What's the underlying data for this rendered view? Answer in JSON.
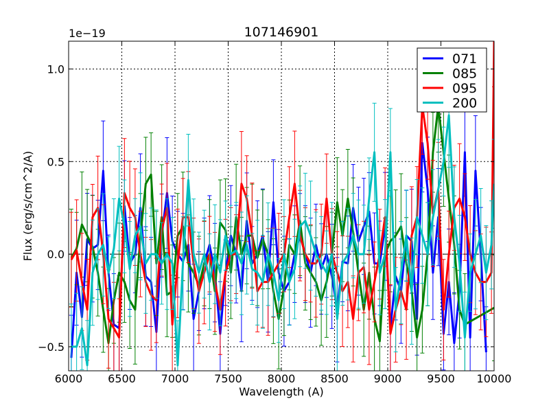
{
  "chart_data": {
    "type": "line",
    "title": "107146901",
    "xlabel": "Wavelength (A)",
    "ylabel": "Flux (erg/s/cm^2/A)",
    "y_scale_label": "1e−19",
    "xlim": [
      6000,
      10000
    ],
    "ylim": [
      -0.63,
      1.15
    ],
    "grid": true,
    "legend_position": "top-right",
    "xticks": [
      6000,
      6500,
      7000,
      7500,
      8000,
      8500,
      9000,
      9500,
      10000
    ],
    "xtick_labels": [
      "6000",
      "6500",
      "7000",
      "7500",
      "8000",
      "8500",
      "9000",
      "9500",
      "10000"
    ],
    "yticks": [
      -0.5,
      0.0,
      0.5,
      1.0
    ],
    "ytick_labels": [
      "−0.5",
      "0.0",
      "0.5",
      "1.0"
    ],
    "series": [
      {
        "name": "071",
        "color": "#0000ff",
        "x": [
          6025,
          6075,
          6125,
          6175,
          6225,
          6275,
          6325,
          6375,
          6425,
          6475,
          6525,
          6575,
          6625,
          6675,
          6725,
          6775,
          6825,
          6875,
          6925,
          6975,
          7025,
          7075,
          7125,
          7175,
          7225,
          7275,
          7325,
          7375,
          7425,
          7475,
          7525,
          7575,
          7625,
          7675,
          7725,
          7775,
          7825,
          7875,
          7925,
          7975,
          8025,
          8075,
          8125,
          8175,
          8225,
          8275,
          8325,
          8375,
          8425,
          8475,
          8525,
          8575,
          8625,
          8675,
          8725,
          8775,
          8825,
          8875,
          8925,
          8975,
          9025,
          9075,
          9125,
          9175,
          9225,
          9275,
          9325,
          9375,
          9425,
          9475,
          9525,
          9575,
          9625,
          9675,
          9725,
          9775,
          9825,
          9875,
          9925
        ],
        "y": [
          -0.56,
          -0.1,
          -0.34,
          0.08,
          0.03,
          0.05,
          0.45,
          -0.1,
          -0.38,
          -0.4,
          0.26,
          -0.05,
          0.0,
          0.25,
          -0.12,
          -0.15,
          -0.42,
          0.1,
          0.33,
          0.07,
          0.0,
          -0.04,
          0.05,
          -0.35,
          -0.2,
          -0.05,
          0.05,
          -0.1,
          -0.43,
          -0.1,
          0.1,
          0.0,
          -0.2,
          0.18,
          -0.05,
          0.0,
          0.1,
          -0.15,
          0.28,
          -0.1,
          -0.2,
          -0.15,
          0.0,
          0.1,
          0.0,
          -0.1,
          0.05,
          -0.08,
          0.0,
          -0.12,
          -0.3,
          -0.04,
          -0.05,
          0.25,
          0.07,
          0.15,
          0.23,
          -0.05,
          -0.05,
          0.15,
          -0.4,
          -0.12,
          -0.2,
          0.1,
          0.07,
          -0.35,
          0.6,
          0.35,
          -0.1,
          0.2,
          -0.43,
          -0.15,
          -0.48,
          -0.2,
          0.55,
          -0.45,
          0.45,
          0.0,
          -0.53
        ]
      },
      {
        "name": "085",
        "color": "#008000",
        "x": [
          6025,
          6075,
          6125,
          6175,
          6225,
          6275,
          6325,
          6375,
          6425,
          6475,
          6525,
          6575,
          6625,
          6675,
          6725,
          6775,
          6825,
          6875,
          6925,
          6975,
          7025,
          7075,
          7125,
          7175,
          7225,
          7275,
          7325,
          7375,
          7425,
          7475,
          7525,
          7575,
          7625,
          7675,
          7725,
          7775,
          7825,
          7875,
          7925,
          7975,
          8025,
          8075,
          8125,
          8175,
          8225,
          8275,
          8325,
          8375,
          8425,
          8475,
          8525,
          8575,
          8625,
          8675,
          8725,
          8775,
          8825,
          8875,
          8925,
          8975,
          9025,
          9075,
          9125,
          9175,
          9225,
          9275,
          9325,
          9375,
          9425,
          9475,
          9525,
          9575,
          9625,
          9675,
          9725,
          10000
        ],
        "y": [
          -0.02,
          0.03,
          0.16,
          0.1,
          0.04,
          -0.1,
          -0.3,
          -0.48,
          -0.25,
          -0.1,
          -0.15,
          -0.25,
          -0.3,
          0.1,
          0.38,
          0.43,
          -0.05,
          0.2,
          -0.22,
          -0.2,
          0.1,
          0.15,
          -0.05,
          -0.1,
          -0.17,
          -0.05,
          0.0,
          -0.2,
          0.17,
          0.13,
          -0.1,
          0.2,
          0.0,
          0.1,
          0.1,
          -0.02,
          0.08,
          0.0,
          -0.2,
          -0.35,
          -0.18,
          0.05,
          0.0,
          0.18,
          -0.05,
          -0.1,
          -0.15,
          -0.25,
          -0.15,
          0.0,
          0.28,
          0.1,
          0.3,
          0.12,
          -0.1,
          -0.3,
          -0.1,
          -0.35,
          -0.47,
          0.0,
          0.07,
          0.1,
          0.15,
          -0.05,
          -0.2,
          -0.45,
          -0.3,
          0.0,
          0.55,
          0.8,
          0.55,
          0.3,
          0.05,
          -0.3,
          -0.38,
          -0.29
        ]
      },
      {
        "name": "095",
        "color": "#ff0000",
        "x": [
          6025,
          6075,
          6125,
          6175,
          6225,
          6275,
          6325,
          6375,
          6425,
          6475,
          6525,
          6575,
          6625,
          6675,
          6725,
          6775,
          6825,
          6875,
          6925,
          6975,
          7025,
          7075,
          7125,
          7175,
          7225,
          7275,
          7325,
          7375,
          7425,
          7475,
          7525,
          7575,
          7625,
          7675,
          7725,
          7775,
          7825,
          7875,
          7925,
          7975,
          8025,
          8075,
          8125,
          8175,
          8225,
          8275,
          8325,
          8375,
          8425,
          8475,
          8525,
          8575,
          8625,
          8675,
          8725,
          8775,
          8825,
          8875,
          8925,
          8975,
          9025,
          9075,
          9125,
          9175,
          9225,
          9275,
          9325,
          9375,
          9425,
          9475,
          9525,
          9575,
          9625,
          9675,
          9725,
          9775,
          9825,
          9875,
          9925,
          9975,
          10000
        ],
        "y": [
          -0.03,
          0.02,
          -0.15,
          -0.3,
          0.2,
          0.25,
          0.0,
          -0.35,
          -0.4,
          -0.45,
          0.33,
          0.25,
          0.2,
          0.0,
          -0.15,
          -0.22,
          -0.25,
          0.13,
          0.25,
          -0.38,
          -0.05,
          0.2,
          0.2,
          -0.05,
          -0.2,
          -0.1,
          0.0,
          -0.15,
          -0.3,
          -0.1,
          0.0,
          0.0,
          0.38,
          0.3,
          0.1,
          -0.2,
          -0.15,
          -0.15,
          -0.1,
          -0.05,
          0.0,
          0.2,
          0.38,
          0.1,
          0.0,
          -0.05,
          -0.05,
          0.0,
          0.3,
          0.0,
          -0.1,
          -0.2,
          -0.15,
          -0.35,
          -0.1,
          -0.07,
          -0.3,
          -0.15,
          0.0,
          0.2,
          -0.43,
          -0.3,
          -0.2,
          -0.3,
          0.1,
          0.2,
          0.8,
          0.6,
          0.22,
          0.35,
          -0.3,
          0.0,
          0.25,
          0.3,
          0.2,
          0.0,
          -0.1,
          -0.15,
          -0.15,
          -0.1,
          1.15
        ]
      },
      {
        "name": "200",
        "color": "#00bfbf",
        "x": [
          6025,
          6075,
          6125,
          6175,
          6225,
          6275,
          6325,
          6375,
          6425,
          6475,
          6525,
          6575,
          6625,
          6675,
          6725,
          6775,
          6825,
          6875,
          6925,
          6975,
          7025,
          7075,
          7125,
          7175,
          7225,
          7275,
          7325,
          7375,
          7425,
          7475,
          7525,
          7575,
          7625,
          7675,
          7725,
          7775,
          7825,
          7875,
          7925,
          7975,
          8025,
          8075,
          8125,
          8175,
          8225,
          8275,
          8325,
          8375,
          8425,
          8475,
          8525,
          8575,
          8625,
          8675,
          8725,
          8775,
          8825,
          8875,
          8925,
          8975,
          9025,
          9075,
          9125,
          9175,
          9225,
          9275,
          9325,
          9375,
          9425,
          9475,
          9525,
          9575,
          9625,
          9675,
          9725,
          9775,
          9825,
          9875,
          9925,
          9975,
          10000
        ],
        "y": [
          -0.5,
          -0.5,
          -0.4,
          -0.6,
          -0.1,
          0.0,
          0.05,
          -0.1,
          0.03,
          0.3,
          0.15,
          -0.08,
          0.1,
          0.15,
          -0.05,
          0.0,
          0.0,
          -0.05,
          0.0,
          -0.05,
          -0.6,
          -0.05,
          0.4,
          0.0,
          -0.1,
          0.0,
          -0.15,
          0.0,
          -0.1,
          0.1,
          0.0,
          0.02,
          -0.05,
          0.05,
          -0.08,
          -0.1,
          -0.15,
          0.0,
          -0.1,
          -0.25,
          0.0,
          -0.15,
          -0.08,
          0.15,
          0.18,
          0.1,
          0.0,
          -0.05,
          -0.1,
          0.0,
          -0.35,
          -0.05,
          0.0,
          0.1,
          0.0,
          0.0,
          0.3,
          0.55,
          -0.1,
          0.0,
          0.55,
          -0.3,
          -0.1,
          0.1,
          -0.2,
          0.2,
          0.1,
          0.0,
          0.2,
          0.35,
          0.5,
          0.75,
          0.2,
          -0.05,
          -0.45,
          -0.1,
          0.0,
          0.1,
          -0.1,
          0.05,
          0.38
        ]
      }
    ]
  }
}
